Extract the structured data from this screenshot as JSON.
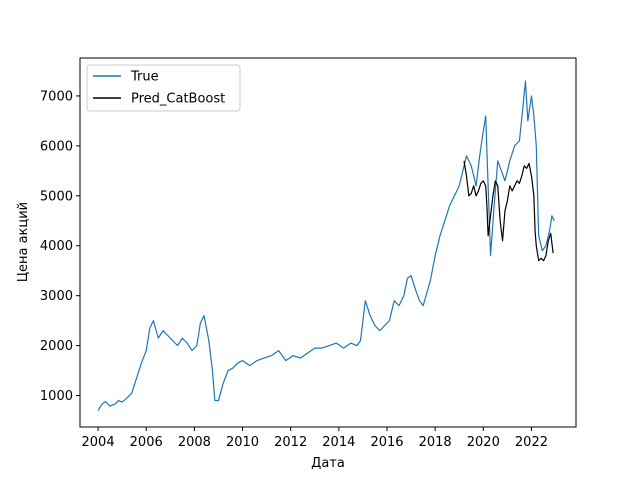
{
  "chart_data": {
    "type": "line",
    "xlabel": "Дата",
    "ylabel": "Цена акций",
    "xlim": [
      2003.25,
      2023.85
    ],
    "ylim": [
      370,
      7760
    ],
    "xticks": [
      2004,
      2006,
      2008,
      2010,
      2012,
      2014,
      2016,
      2018,
      2020,
      2022
    ],
    "xtick_labels": [
      "2004",
      "2006",
      "2008",
      "2010",
      "2012",
      "2014",
      "2016",
      "2018",
      "2020",
      "2022"
    ],
    "yticks": [
      1000,
      2000,
      3000,
      4000,
      5000,
      6000,
      7000
    ],
    "ytick_labels": [
      "1000",
      "2000",
      "3000",
      "4000",
      "5000",
      "6000",
      "7000"
    ],
    "grid": false,
    "legend_position": "upper-left",
    "series": [
      {
        "name": "True",
        "color": "#1f77b4",
        "x": [
          2004.0,
          2004.15,
          2004.3,
          2004.5,
          2004.7,
          2004.85,
          2005.0,
          2005.2,
          2005.4,
          2005.6,
          2005.8,
          2006.0,
          2006.15,
          2006.3,
          2006.5,
          2006.7,
          2006.9,
          2007.1,
          2007.3,
          2007.5,
          2007.7,
          2007.9,
          2008.1,
          2008.25,
          2008.4,
          2008.6,
          2008.75,
          2008.85,
          2009.0,
          2009.2,
          2009.4,
          2009.6,
          2009.8,
          2010.0,
          2010.3,
          2010.6,
          2010.9,
          2011.2,
          2011.5,
          2011.8,
          2012.1,
          2012.4,
          2012.7,
          2013.0,
          2013.3,
          2013.6,
          2013.9,
          2014.2,
          2014.5,
          2014.75,
          2014.9,
          2015.1,
          2015.3,
          2015.5,
          2015.7,
          2015.9,
          2016.1,
          2016.3,
          2016.5,
          2016.7,
          2016.85,
          2017.0,
          2017.2,
          2017.35,
          2017.5,
          2017.65,
          2017.8,
          2018.0,
          2018.2,
          2018.4,
          2018.6,
          2018.8,
          2019.0,
          2019.15,
          2019.3,
          2019.5,
          2019.7,
          2019.85,
          2020.0,
          2020.1,
          2020.2,
          2020.3,
          2020.45,
          2020.6,
          2020.75,
          2020.9,
          2021.1,
          2021.3,
          2021.5,
          2021.65,
          2021.75,
          2021.85,
          2022.0,
          2022.1,
          2022.2,
          2022.3,
          2022.45,
          2022.6,
          2022.75,
          2022.85,
          2022.95
        ],
        "y": [
          700,
          820,
          880,
          790,
          830,
          900,
          870,
          950,
          1050,
          1350,
          1650,
          1900,
          2350,
          2500,
          2150,
          2300,
          2200,
          2100,
          2000,
          2150,
          2050,
          1900,
          2000,
          2450,
          2600,
          2100,
          1500,
          900,
          900,
          1250,
          1500,
          1550,
          1650,
          1700,
          1600,
          1700,
          1750,
          1800,
          1900,
          1700,
          1800,
          1750,
          1850,
          1950,
          1950,
          2000,
          2050,
          1950,
          2050,
          2000,
          2100,
          2900,
          2600,
          2400,
          2300,
          2400,
          2500,
          2900,
          2800,
          3000,
          3350,
          3400,
          3100,
          2900,
          2800,
          3050,
          3300,
          3800,
          4200,
          4500,
          4800,
          5000,
          5200,
          5500,
          5800,
          5600,
          5200,
          5800,
          6300,
          6600,
          5200,
          3800,
          4800,
          5700,
          5500,
          5300,
          5700,
          6000,
          6100,
          6800,
          7300,
          6500,
          7000,
          6600,
          6000,
          4200,
          3900,
          4000,
          4300,
          4600,
          4500
        ]
      },
      {
        "name": "Pred_CatBoost",
        "color": "#000000",
        "x": [
          2019.2,
          2019.3,
          2019.4,
          2019.5,
          2019.6,
          2019.7,
          2019.8,
          2019.9,
          2020.0,
          2020.1,
          2020.15,
          2020.2,
          2020.3,
          2020.4,
          2020.5,
          2020.6,
          2020.7,
          2020.8,
          2020.9,
          2021.0,
          2021.1,
          2021.2,
          2021.3,
          2021.4,
          2021.5,
          2021.6,
          2021.7,
          2021.8,
          2021.9,
          2022.0,
          2022.1,
          2022.15,
          2022.2,
          2022.3,
          2022.4,
          2022.5,
          2022.6,
          2022.7,
          2022.8,
          2022.9
        ],
        "y": [
          5700,
          5400,
          5000,
          5050,
          5200,
          5000,
          5100,
          5250,
          5300,
          5200,
          4800,
          4200,
          4600,
          5000,
          5300,
          5200,
          4500,
          4100,
          4700,
          4900,
          5200,
          5100,
          5200,
          5300,
          5250,
          5400,
          5600,
          5550,
          5650,
          5400,
          5000,
          4300,
          4000,
          3700,
          3750,
          3700,
          3800,
          4100,
          4250,
          3850
        ]
      }
    ]
  }
}
